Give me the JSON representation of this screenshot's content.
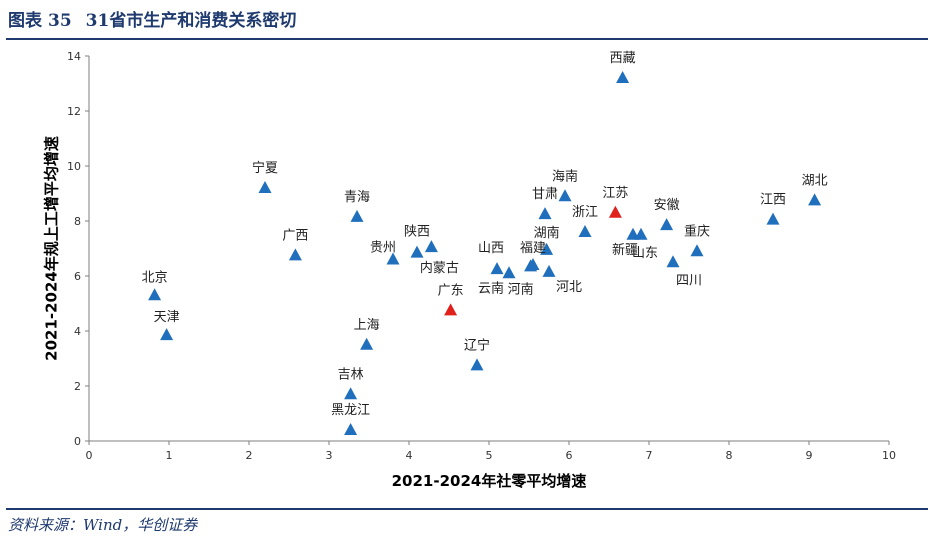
{
  "header": {
    "label": "图表",
    "number": "35",
    "title": "31省市生产和消费关系密切"
  },
  "source": "资料来源：Wind，华创证券",
  "chart_data": {
    "type": "scatter",
    "xlabel": "2021-2024年社零平均增速",
    "ylabel": "2021-2024年规上工增平均增速",
    "xlim": [
      0,
      10
    ],
    "ylim": [
      0,
      14
    ],
    "xticks": [
      0,
      1,
      2,
      3,
      4,
      5,
      6,
      7,
      8,
      9,
      10
    ],
    "yticks": [
      0,
      2,
      4,
      6,
      8,
      10,
      12,
      14
    ],
    "grid": false,
    "colors": {
      "default": "#1f6fbd",
      "highlight": "#e0201b"
    },
    "points": [
      {
        "name": "北京",
        "x": 0.82,
        "y": 5.3,
        "dx": 0,
        "dy": -18
      },
      {
        "name": "天津",
        "x": 0.97,
        "y": 3.85,
        "dx": 0,
        "dy": -18
      },
      {
        "name": "宁夏",
        "x": 2.2,
        "y": 9.2,
        "dx": 0,
        "dy": -20
      },
      {
        "name": "广西",
        "x": 2.58,
        "y": 6.75,
        "dx": 0,
        "dy": -20
      },
      {
        "name": "青海",
        "x": 3.35,
        "y": 8.15,
        "dx": 0,
        "dy": -20
      },
      {
        "name": "上海",
        "x": 3.47,
        "y": 3.5,
        "dx": 0,
        "dy": -20
      },
      {
        "name": "吉林",
        "x": 3.27,
        "y": 1.7,
        "dx": 0,
        "dy": -20
      },
      {
        "name": "黑龙江",
        "x": 3.27,
        "y": 0.4,
        "dx": 0,
        "dy": -20
      },
      {
        "name": "贵州",
        "x": 3.8,
        "y": 6.6,
        "dx": -10,
        "dy": -12
      },
      {
        "name": "陕西",
        "x": 4.1,
        "y": 6.85,
        "dx": 0,
        "dy": -21
      },
      {
        "name": "内蒙古",
        "x": 4.28,
        "y": 7.05,
        "dx": 8,
        "dy": 21
      },
      {
        "name": "广东",
        "x": 4.52,
        "y": 4.75,
        "dx": 0,
        "dy": -20,
        "highlight": true
      },
      {
        "name": "辽宁",
        "x": 4.85,
        "y": 2.75,
        "dx": 0,
        "dy": -20
      },
      {
        "name": "山西",
        "x": 5.1,
        "y": 6.25,
        "dx": -6,
        "dy": -21
      },
      {
        "name": "云南",
        "x": 5.25,
        "y": 6.1,
        "dx": -18,
        "dy": 15
      },
      {
        "name": "河南",
        "x": 5.52,
        "y": 6.35,
        "dx": -10,
        "dy": 23
      },
      {
        "name": "福建",
        "x": 5.55,
        "y": 6.4,
        "dx": 0,
        "dy": -17
      },
      {
        "name": "湖南",
        "x": 5.72,
        "y": 6.95,
        "dx": 0,
        "dy": -17
      },
      {
        "name": "甘肃",
        "x": 5.7,
        "y": 8.25,
        "dx": 0,
        "dy": -20
      },
      {
        "name": "海南",
        "x": 5.95,
        "y": 8.9,
        "dx": 0,
        "dy": -20
      },
      {
        "name": "河北",
        "x": 5.75,
        "y": 6.15,
        "dx": 20,
        "dy": 15
      },
      {
        "name": "浙江",
        "x": 6.2,
        "y": 7.6,
        "dx": 0,
        "dy": -20
      },
      {
        "name": "江苏",
        "x": 6.58,
        "y": 8.3,
        "dx": 0,
        "dy": -20,
        "highlight": true
      },
      {
        "name": "西藏",
        "x": 6.67,
        "y": 13.2,
        "dx": 0,
        "dy": -20
      },
      {
        "name": "新疆",
        "x": 6.8,
        "y": 7.5,
        "dx": -8,
        "dy": 15
      },
      {
        "name": "山东",
        "x": 6.9,
        "y": 7.5,
        "dx": 4,
        "dy": 18
      },
      {
        "name": "安徽",
        "x": 7.22,
        "y": 7.85,
        "dx": 0,
        "dy": -20
      },
      {
        "name": "四川",
        "x": 7.3,
        "y": 6.5,
        "dx": 16,
        "dy": 18
      },
      {
        "name": "重庆",
        "x": 7.6,
        "y": 6.9,
        "dx": 0,
        "dy": -20
      },
      {
        "name": "江西",
        "x": 8.55,
        "y": 8.05,
        "dx": 0,
        "dy": -20
      },
      {
        "name": "湖北",
        "x": 9.07,
        "y": 8.75,
        "dx": 0,
        "dy": -20
      }
    ]
  }
}
